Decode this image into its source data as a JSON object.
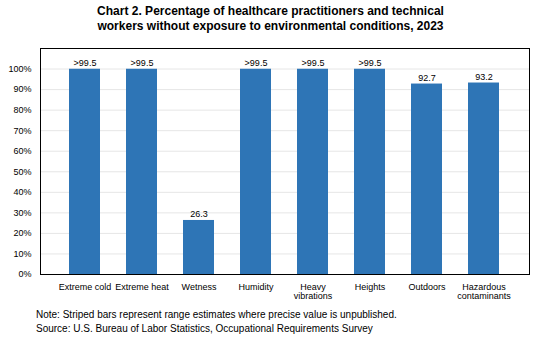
{
  "chart_data": {
    "type": "bar",
    "title": "Chart 2. Percentage of healthcare practitioners and technical\nworkers without exposure to environmental conditions, 2023",
    "categories": [
      "Extreme cold",
      "Extreme heat",
      "Wetness",
      "Humidity",
      "Heavy\nvibrations",
      "Heights",
      "Outdoors",
      "Hazardous\ncontaminants"
    ],
    "values": [
      99.9,
      99.9,
      26.3,
      99.9,
      99.9,
      99.9,
      92.7,
      93.2
    ],
    "value_labels": [
      ">99.5",
      ">99.5",
      "26.3",
      ">99.5",
      ">99.5",
      ">99.5",
      "92.7",
      "93.2"
    ],
    "data_labels": true,
    "color": "#2E75B6",
    "ylim": [
      0,
      110
    ],
    "yticks": [
      {
        "value": 0,
        "label": "0%"
      },
      {
        "value": 10,
        "label": "10%"
      },
      {
        "value": 20,
        "label": "20%"
      },
      {
        "value": 30,
        "label": "30%"
      },
      {
        "value": 40,
        "label": "40%"
      },
      {
        "value": 50,
        "label": "50%"
      },
      {
        "value": 60,
        "label": "60%"
      },
      {
        "value": 70,
        "label": "70%"
      },
      {
        "value": 80,
        "label": "80%"
      },
      {
        "value": 90,
        "label": "90%"
      },
      {
        "value": 100,
        "label": "100%"
      }
    ],
    "grid": true,
    "annotations": [
      "Note: Striped bars represent range estimates where precise value is unpublished.",
      "Source: U.S. Bureau of Labor Statistics, Occupational Requirements Survey"
    ]
  }
}
